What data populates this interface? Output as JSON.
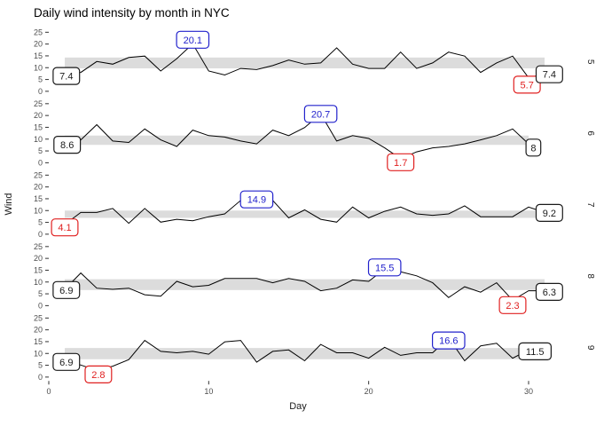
{
  "title": "Daily wind intensity by month in NYC",
  "colors": {
    "line": "#000000",
    "band": "#dcdcdc",
    "axis_text": "#4d4d4d",
    "axis_title": "#1a1a1a",
    "strip_text": "#1a1a1a",
    "label_black": "#1a1a1a",
    "label_blue": "#2222cc",
    "label_red": "#e02020",
    "label_fill": "#ffffff",
    "background": "#ffffff"
  },
  "chart_data": {
    "type": "line",
    "title": "Daily wind intensity by month in NYC",
    "xlabel": "Day",
    "ylabel": "Wind",
    "x_ticks": [
      0,
      10,
      20,
      30
    ],
    "y_ticks": [
      0,
      5,
      10,
      15,
      20,
      25
    ],
    "xlim": [
      -0.5,
      32.5
    ],
    "ylim": [
      -1.25,
      26.25
    ],
    "grid": "off",
    "legend": "none",
    "facet_side": "right",
    "facets": [
      {
        "facet_label": "5",
        "values": [
          7.4,
          8.0,
          12.6,
          11.5,
          14.3,
          14.9,
          8.6,
          13.8,
          20.1,
          8.6,
          6.9,
          9.7,
          9.2,
          10.9,
          13.2,
          11.5,
          12.0,
          18.4,
          11.5,
          9.7,
          9.7,
          16.6,
          9.7,
          12.0,
          16.6,
          14.9,
          8.0,
          12.0,
          14.9,
          5.7,
          7.4
        ],
        "band": [
          9.7,
          14.3
        ],
        "annotations": [
          {
            "text": "7.4",
            "type": "first",
            "day": 1,
            "value": 7.4,
            "color": "black",
            "cx": 1.1,
            "cy": 6.5
          },
          {
            "text": "20.1",
            "type": "max",
            "day": 9,
            "value": 20.1,
            "color": "blue",
            "cx": 9.0,
            "cy": 21.8
          },
          {
            "text": "5.7",
            "type": "min",
            "day": 30,
            "value": 5.7,
            "color": "red",
            "cx": 29.9,
            "cy": 2.8
          },
          {
            "text": "7.4",
            "type": "last",
            "day": 31,
            "value": 7.4,
            "color": "black",
            "cx": 31.3,
            "cy": 7.2
          }
        ]
      },
      {
        "facet_label": "6",
        "values": [
          8.6,
          9.7,
          16.1,
          9.2,
          8.6,
          14.3,
          9.7,
          6.9,
          13.8,
          11.5,
          10.9,
          9.2,
          8.0,
          13.8,
          11.5,
          14.9,
          20.7,
          9.2,
          11.5,
          10.3,
          6.3,
          1.7,
          4.6,
          6.3,
          6.9,
          8.0,
          9.7,
          11.5,
          14.3,
          8.0
        ],
        "band": [
          7.55,
          11.5
        ],
        "annotations": [
          {
            "text": "8.6",
            "type": "first",
            "day": 1,
            "value": 8.6,
            "color": "black",
            "cx": 1.15,
            "cy": 7.6
          },
          {
            "text": "20.7",
            "type": "max",
            "day": 17,
            "value": 20.7,
            "color": "blue",
            "cx": 17.0,
            "cy": 20.7
          },
          {
            "text": "1.7",
            "type": "min",
            "day": 22,
            "value": 1.7,
            "color": "red",
            "cx": 22.0,
            "cy": 0.2
          },
          {
            "text": "8",
            "type": "last",
            "day": 30,
            "value": 8.0,
            "color": "black",
            "cx": 30.3,
            "cy": 6.4
          }
        ]
      },
      {
        "facet_label": "7",
        "values": [
          4.1,
          9.2,
          9.2,
          10.9,
          4.6,
          10.9,
          5.1,
          6.3,
          5.7,
          7.4,
          8.6,
          14.3,
          14.9,
          14.3,
          6.9,
          10.3,
          6.3,
          5.1,
          11.5,
          6.9,
          9.7,
          11.5,
          8.6,
          8.0,
          8.6,
          12.0,
          7.4,
          7.4,
          7.4,
          11.5,
          9.2
        ],
        "band": [
          6.9,
          10.0
        ],
        "annotations": [
          {
            "text": "4.1",
            "type": "min",
            "day": 1,
            "value": 4.1,
            "color": "red",
            "cx": 1.0,
            "cy": 2.9
          },
          {
            "text": "14.9",
            "type": "max",
            "day": 13,
            "value": 14.9,
            "color": "blue",
            "cx": 13.0,
            "cy": 14.7
          },
          {
            "text": "9.2",
            "type": "last",
            "day": 31,
            "value": 9.2,
            "color": "black",
            "cx": 31.3,
            "cy": 9.0
          }
        ]
      },
      {
        "facet_label": "8",
        "values": [
          6.9,
          13.8,
          7.4,
          6.9,
          7.4,
          4.6,
          4.0,
          10.3,
          8.0,
          8.6,
          11.5,
          11.5,
          11.5,
          9.7,
          11.5,
          10.3,
          6.3,
          7.4,
          10.9,
          10.3,
          15.5,
          14.3,
          12.6,
          9.7,
          3.4,
          8.0,
          5.7,
          9.7,
          2.3,
          6.3,
          6.3
        ],
        "band": [
          6.6,
          11.2
        ],
        "annotations": [
          {
            "text": "6.9",
            "type": "first",
            "day": 1,
            "value": 6.9,
            "color": "black",
            "cx": 1.1,
            "cy": 6.6
          },
          {
            "text": "15.5",
            "type": "max",
            "day": 21,
            "value": 15.5,
            "color": "blue",
            "cx": 21.0,
            "cy": 16.2
          },
          {
            "text": "2.3",
            "type": "min",
            "day": 29,
            "value": 2.3,
            "color": "red",
            "cx": 29.0,
            "cy": 0.2
          },
          {
            "text": "6.3",
            "type": "last",
            "day": 31,
            "value": 6.3,
            "color": "black",
            "cx": 31.3,
            "cy": 5.8
          }
        ]
      },
      {
        "facet_label": "9",
        "values": [
          6.9,
          5.1,
          2.8,
          4.6,
          7.4,
          15.5,
          10.9,
          10.3,
          10.9,
          9.7,
          14.9,
          15.5,
          6.3,
          10.9,
          11.5,
          6.9,
          13.8,
          10.3,
          10.3,
          8.0,
          12.6,
          9.2,
          10.3,
          10.3,
          16.6,
          6.9,
          13.2,
          14.3,
          8.0,
          11.5
        ],
        "band": [
          7.55,
          12.3
        ],
        "annotations": [
          {
            "text": "6.9",
            "type": "first",
            "day": 1,
            "value": 6.9,
            "color": "black",
            "cx": 1.1,
            "cy": 6.4
          },
          {
            "text": "2.8",
            "type": "min",
            "day": 3,
            "value": 2.8,
            "color": "red",
            "cx": 3.1,
            "cy": 1.1
          },
          {
            "text": "16.6",
            "type": "max",
            "day": 25,
            "value": 16.6,
            "color": "blue",
            "cx": 25.0,
            "cy": 15.5
          },
          {
            "text": "11.5",
            "type": "last",
            "day": 30,
            "value": 11.5,
            "color": "black",
            "cx": 30.4,
            "cy": 10.9
          }
        ]
      }
    ]
  }
}
